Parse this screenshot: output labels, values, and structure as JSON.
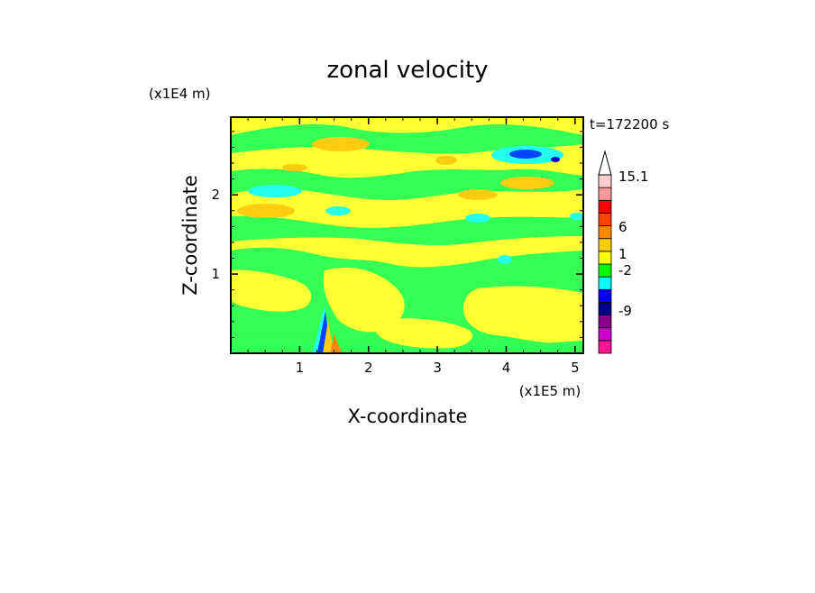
{
  "chart_data": {
    "type": "heatmap",
    "title": "zonal velocity",
    "xlabel": "X-coordinate",
    "ylabel": "Z-coordinate",
    "x_unit_label": "(x1E5 m)",
    "y_unit_label": "(x1E4 m)",
    "time_label": "t=172200 s",
    "x_ticks": [
      "1",
      "2",
      "3",
      "4",
      "5"
    ],
    "x_tick_values": [
      1,
      2,
      3,
      4,
      5
    ],
    "y_ticks": [
      "1",
      "2"
    ],
    "y_tick_values": [
      1,
      2
    ],
    "xlim": [
      0,
      5.12
    ],
    "ylim": [
      0,
      2.98
    ],
    "colorbar": {
      "labels": [
        "15.1",
        "6",
        "1",
        "-2",
        "-9"
      ],
      "colors": [
        "#ff1493",
        "#cc00cc",
        "#8b008b",
        "#00008b",
        "#0000ff",
        "#00ffff",
        "#00ff00",
        "#ffff00",
        "#ffcc00",
        "#ff8800",
        "#ff4400",
        "#ff0000",
        "#ff9999",
        "#ffcccc"
      ],
      "arrow_top": true
    },
    "background_level_color": "#ffff33",
    "contour_regions": [
      {
        "level": "green",
        "color": "#33ff55"
      },
      {
        "level": "yellow",
        "color": "#ffff33"
      },
      {
        "level": "orange",
        "color": "#ffcc11"
      },
      {
        "level": "cyan",
        "color": "#22ffee"
      },
      {
        "level": "blue",
        "color": "#0044ff"
      },
      {
        "level": "darkblue",
        "color": "#0000cc"
      }
    ]
  }
}
